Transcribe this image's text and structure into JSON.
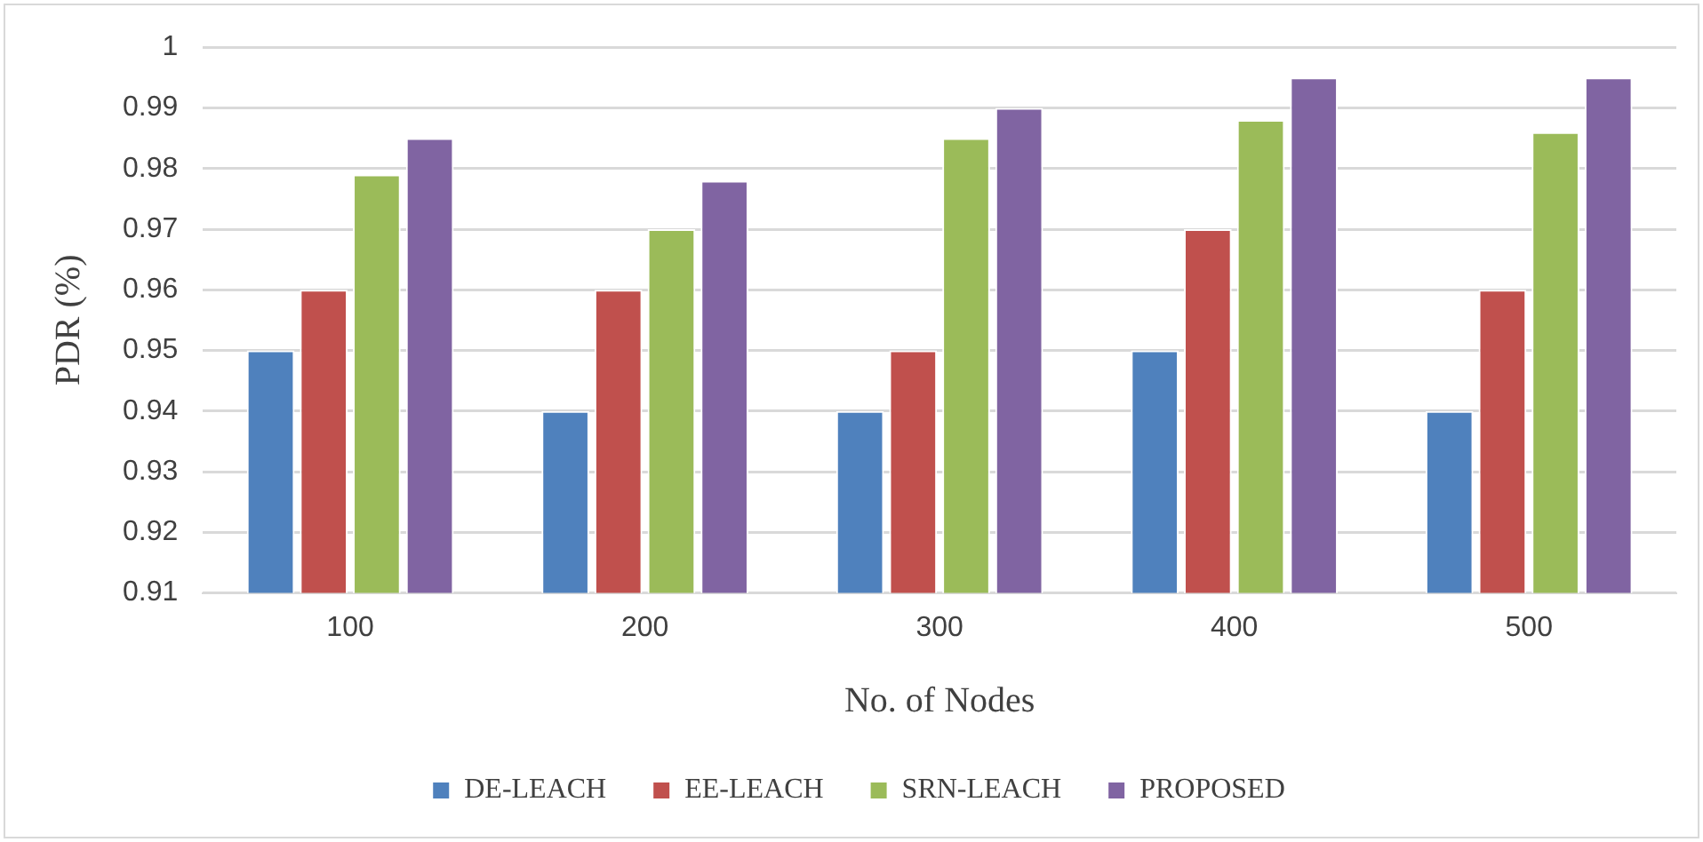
{
  "chart_data": {
    "type": "bar",
    "xlabel": "No. of Nodes",
    "ylabel": "PDR (%)",
    "categories": [
      "100",
      "200",
      "300",
      "400",
      "500"
    ],
    "series": [
      {
        "name": "DE-LEACH",
        "color": "#4f81bd",
        "values": [
          0.95,
          0.94,
          0.94,
          0.95,
          0.94
        ]
      },
      {
        "name": "EE-LEACH",
        "color": "#c0504d",
        "values": [
          0.96,
          0.96,
          0.95,
          0.97,
          0.96
        ]
      },
      {
        "name": "SRN-LEACH",
        "color": "#9bbb59",
        "values": [
          0.979,
          0.97,
          0.985,
          0.988,
          0.986
        ]
      },
      {
        "name": "PROPOSED",
        "color": "#8064a2",
        "values": [
          0.985,
          0.978,
          0.99,
          0.995,
          0.995
        ]
      }
    ],
    "ylim": [
      0.91,
      1
    ],
    "yticks": [
      0.91,
      0.92,
      0.93,
      0.94,
      0.95,
      0.96,
      0.97,
      0.98,
      0.99,
      1
    ],
    "grid": "y",
    "legend": "bottom"
  }
}
